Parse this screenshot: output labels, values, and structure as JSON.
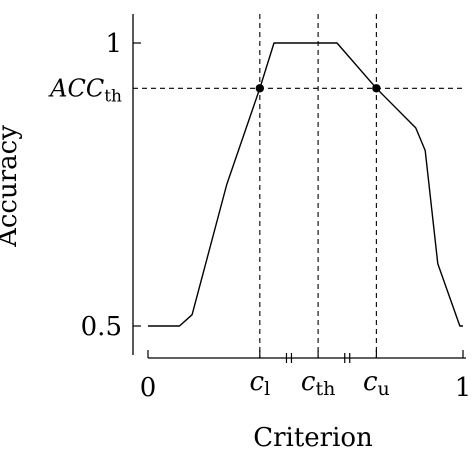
{
  "chart_data": {
    "type": "line",
    "title": "",
    "xlabel": "Criterion",
    "ylabel": "Accuracy",
    "xlim": [
      0,
      1
    ],
    "ylim": [
      0.5,
      1
    ],
    "grid": false,
    "legend": "none",
    "x_ticks": [
      {
        "value": 0,
        "label": "0"
      },
      {
        "value": 1,
        "label": "1"
      }
    ],
    "y_ticks": [
      {
        "value": 0.5,
        "label": "0.5"
      },
      {
        "value": 1,
        "label": "1"
      }
    ],
    "reference_lines": {
      "c_l": {
        "x": 0.355,
        "base": "c",
        "sub": "l"
      },
      "c_th": {
        "x": 0.54,
        "base": "c",
        "sub": "th"
      },
      "c_u": {
        "x": 0.725,
        "base": "c",
        "sub": "u"
      },
      "acc_th": {
        "y": 0.92,
        "base": "ACC",
        "sub": "th"
      }
    },
    "series": [
      {
        "line_color": "#000000",
        "x": [
          0.0,
          0.1,
          0.14,
          0.25,
          0.355,
          0.4,
          0.54,
          0.6,
          0.725,
          0.85,
          0.88,
          0.92,
          0.99,
          1.0
        ],
        "y": [
          0.5,
          0.5,
          0.52,
          0.75,
          0.92,
          1.0,
          1.0,
          1.0,
          0.92,
          0.85,
          0.81,
          0.61,
          0.5,
          0.5
        ]
      }
    ],
    "markers": [
      {
        "x": 0.355,
        "y": 0.92
      },
      {
        "x": 0.725,
        "y": 0.92
      }
    ]
  }
}
